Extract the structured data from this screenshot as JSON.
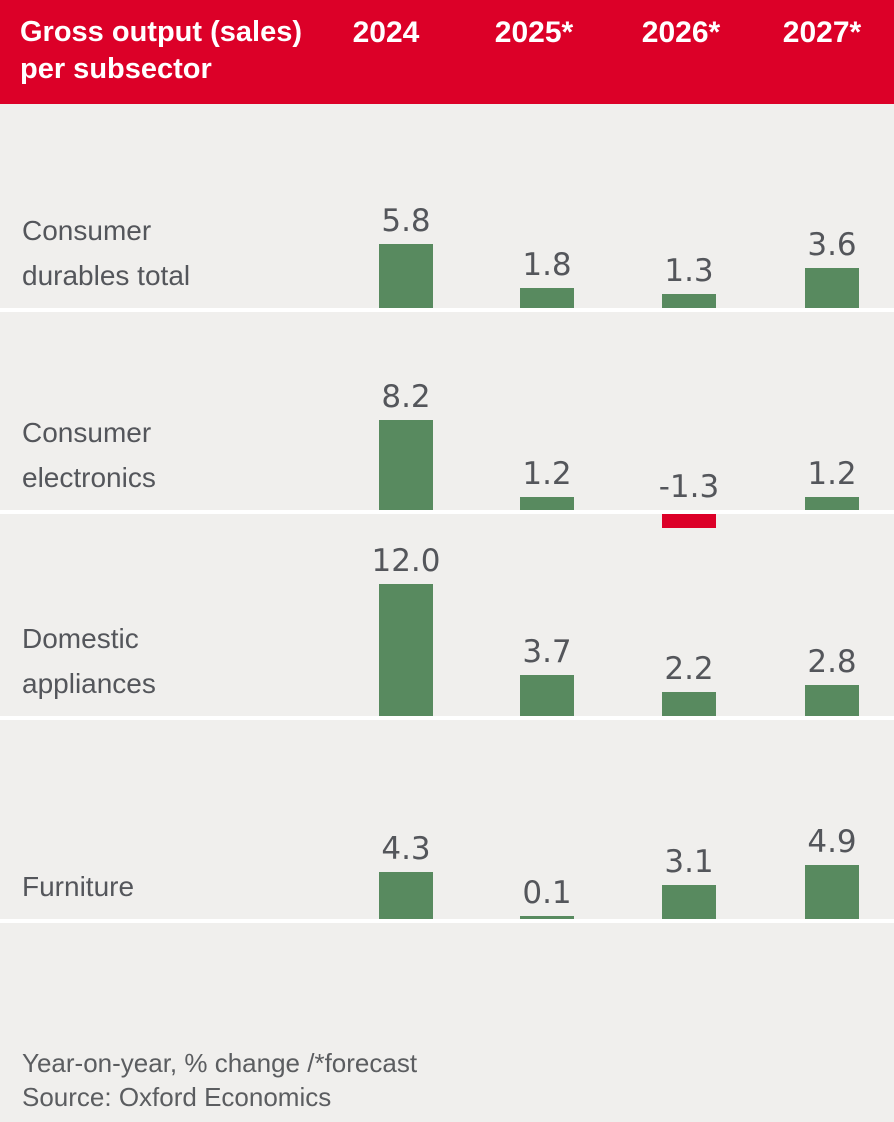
{
  "header": {
    "title_line1": "Gross output (sales)",
    "title_line2": "per subsector",
    "columns": [
      "2024",
      "2025*",
      "2026*",
      "2027*"
    ]
  },
  "chart_data": {
    "type": "bar",
    "title": "Gross output (sales) per subsector",
    "categories": [
      "2024",
      "2025*",
      "2026*",
      "2027*"
    ],
    "series": [
      {
        "name": "Consumer durables total",
        "label_lines": [
          "Consumer",
          "durables total"
        ],
        "values": [
          5.8,
          1.8,
          1.3,
          3.6
        ]
      },
      {
        "name": "Consumer electronics",
        "label_lines": [
          "Consumer",
          "electronics"
        ],
        "values": [
          8.2,
          1.2,
          -1.3,
          1.2
        ]
      },
      {
        "name": "Domestic appliances",
        "label_lines": [
          "Domestic",
          "appliances"
        ],
        "values": [
          12.0,
          3.7,
          2.2,
          2.8
        ]
      },
      {
        "name": "Furniture",
        "label_lines": [
          "Furniture"
        ],
        "values": [
          4.3,
          0.1,
          3.1,
          4.9
        ]
      }
    ],
    "value_labels": "one_decimal",
    "grid": false,
    "legend": false,
    "colors": {
      "positive": "#588A5F",
      "negative": "#DC0028"
    }
  },
  "footer": {
    "note": "Year-on-year, % change /*forecast",
    "source": "Source: Oxford Economics"
  },
  "colors": {
    "header_bg": "#DC0028",
    "header_text": "#FFFFFF",
    "background": "#F0EFED",
    "text": "#54565B",
    "baseline": "#FFFFFF"
  }
}
